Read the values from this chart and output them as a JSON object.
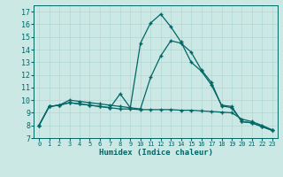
{
  "xlabel": "Humidex (Indice chaleur)",
  "bg_color": "#cce8e4",
  "grid_color": "#b0d8d4",
  "line_color": "#006666",
  "xlim": [
    -0.5,
    23.5
  ],
  "ylim": [
    7,
    17.5
  ],
  "yticks": [
    7,
    8,
    9,
    10,
    11,
    12,
    13,
    14,
    15,
    16,
    17
  ],
  "xticks": [
    0,
    1,
    2,
    3,
    4,
    5,
    6,
    7,
    8,
    9,
    10,
    11,
    12,
    13,
    14,
    15,
    16,
    17,
    18,
    19,
    20,
    21,
    22,
    23
  ],
  "series1_x": [
    0,
    1,
    2,
    3,
    4,
    5,
    6,
    7,
    8,
    9,
    10,
    11,
    12,
    13,
    14,
    15,
    16,
    17,
    18,
    19,
    20,
    21,
    22,
    23
  ],
  "series1_y": [
    8.0,
    9.5,
    9.6,
    10.0,
    9.9,
    9.8,
    9.7,
    9.6,
    9.5,
    9.4,
    14.5,
    16.1,
    16.8,
    15.8,
    14.6,
    13.0,
    12.3,
    11.2,
    9.6,
    9.5,
    8.3,
    8.2,
    7.9,
    7.6
  ],
  "series2_x": [
    0,
    1,
    2,
    3,
    4,
    5,
    6,
    7,
    8,
    9,
    10,
    11,
    12,
    13,
    14,
    15,
    16,
    17,
    18,
    19,
    20,
    21,
    22,
    23
  ],
  "series2_y": [
    8.0,
    9.5,
    9.6,
    9.8,
    9.7,
    9.6,
    9.5,
    9.4,
    9.3,
    9.3,
    9.25,
    9.25,
    9.25,
    9.25,
    9.2,
    9.2,
    9.15,
    9.1,
    9.05,
    9.0,
    8.5,
    8.3,
    8.0,
    7.65
  ],
  "series3_x": [
    0,
    1,
    2,
    3,
    4,
    5,
    6,
    7,
    8,
    9,
    10,
    11,
    12,
    13,
    14,
    15,
    16,
    17,
    18,
    19,
    20,
    21,
    22,
    23
  ],
  "series3_y": [
    8.0,
    9.5,
    9.6,
    9.8,
    9.7,
    9.6,
    9.5,
    9.4,
    10.5,
    9.4,
    9.3,
    11.8,
    13.5,
    14.7,
    14.5,
    13.8,
    12.4,
    11.4,
    9.55,
    9.4,
    8.3,
    8.2,
    7.9,
    7.6
  ],
  "marker": "+",
  "markersize": 3,
  "linewidth": 0.9
}
